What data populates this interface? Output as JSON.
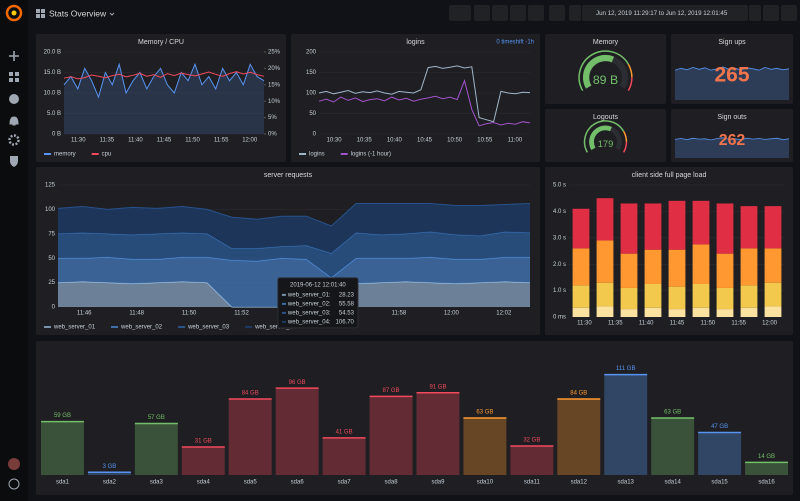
{
  "header": {
    "title": "Stats Overview",
    "time_range": "Jun 12, 2019 11:29:17 to Jun 12, 2019 12:01:45"
  },
  "chart_data": [
    {
      "type": "line",
      "title": "Memory / CPU",
      "ylim": [
        0,
        20
      ],
      "yticks": [
        {
          "value": 0,
          "label": "0 B"
        },
        {
          "value": 5,
          "label": "5.0 B"
        },
        {
          "value": 10,
          "label": "10.0 B"
        },
        {
          "value": 15,
          "label": "15.0 B"
        },
        {
          "value": 20,
          "label": "20.0 B"
        }
      ],
      "y2lim": [
        0,
        25
      ],
      "y2ticks": [
        {
          "value": 0,
          "label": "0%"
        },
        {
          "value": 5,
          "label": "5%"
        },
        {
          "value": 10,
          "label": "10%"
        },
        {
          "value": 15,
          "label": "15%"
        },
        {
          "value": 20,
          "label": "20%"
        },
        {
          "value": 25,
          "label": "25%"
        }
      ],
      "x_labels": [
        "11:30",
        "11:35",
        "11:40",
        "11:45",
        "11:50",
        "11:55",
        "12:00"
      ],
      "grid": true,
      "series": [
        {
          "name": "memory",
          "color": "#5794f2",
          "area": true,
          "values": [
            12,
            14,
            11,
            16,
            13,
            9,
            15,
            12,
            17,
            10,
            13,
            15,
            11,
            14,
            16,
            12,
            10,
            15,
            13,
            17,
            12,
            14,
            11,
            16,
            13,
            15,
            12,
            17,
            14,
            13
          ]
        },
        {
          "name": "cpu",
          "color": "#f2495c",
          "axis": "y2",
          "values": [
            17,
            17.5,
            16.8,
            17.2,
            18,
            17.6,
            17.1,
            17.8,
            18.2,
            17.4,
            17.9,
            18.5,
            17.6,
            18.1,
            17.3,
            18.4,
            17.8,
            18.6,
            18.1,
            17.7,
            18.3,
            18.9,
            18.2,
            17.6,
            18.4,
            19,
            18.3,
            18.8,
            18.1,
            17.6
          ]
        }
      ]
    },
    {
      "type": "line",
      "title": "logins",
      "annotation": "0 timeshift -1h",
      "ylim": [
        0,
        200
      ],
      "yticks": [
        0,
        50,
        100,
        150,
        200
      ],
      "x_labels": [
        "10:30",
        "10:35",
        "10:40",
        "10:45",
        "10:50",
        "10:55",
        "11:00"
      ],
      "grid": true,
      "series": [
        {
          "name": "logins",
          "color": "#9fb5c8",
          "values": [
            100,
            104,
            98,
            102,
            106,
            99,
            103,
            101,
            105,
            100,
            97,
            104,
            102,
            100,
            108,
            162,
            165,
            160,
            163,
            166,
            161,
            164,
            40,
            35,
            30,
            104,
            100,
            98,
            102,
            101
          ]
        },
        {
          "name": "logins (-1 hour)",
          "color": "#a352cc",
          "values": [
            80,
            85,
            78,
            90,
            82,
            88,
            79,
            84,
            86,
            81,
            90,
            83,
            87,
            80,
            85,
            88,
            92,
            86,
            90,
            84,
            130,
            60,
            20,
            25,
            28,
            22,
            26,
            24,
            30,
            27
          ]
        }
      ]
    },
    {
      "type": "gauge",
      "title": "Memory",
      "value": 89,
      "value_label": "89 B",
      "ylim": [
        0,
        150
      ],
      "color": "#73bf69"
    },
    {
      "type": "stat",
      "title": "Sign ups",
      "value": 265,
      "color": "#f2744b",
      "ylim": [
        200,
        300
      ],
      "sparkline_color": "#5794f2",
      "values": [
        262,
        266,
        263,
        268,
        264,
        267,
        262,
        265,
        269,
        264,
        266,
        263,
        267,
        265,
        262,
        268,
        264,
        266,
        263,
        265
      ]
    },
    {
      "type": "gauge",
      "title": "Logouts",
      "value": 179,
      "ylim": [
        0,
        300
      ],
      "color": "#73bf69"
    },
    {
      "type": "stat",
      "title": "Sign outs",
      "value": 262,
      "color": "#f2744b",
      "ylim": [
        200,
        300
      ],
      "sparkline_color": "#5794f2",
      "values": [
        260,
        263,
        259,
        264,
        261,
        262,
        258,
        263,
        265,
        260,
        262,
        259,
        264,
        261,
        263,
        260,
        262,
        264,
        259,
        262
      ]
    },
    {
      "type": "area",
      "title": "server requests",
      "stacked": true,
      "ylim": [
        0,
        125
      ],
      "yticks": [
        0,
        25,
        50,
        75,
        100,
        125
      ],
      "grid": true,
      "x_labels": [
        "11:46",
        "11:48",
        "11:50",
        "11:52",
        "11:54",
        "11:56",
        "11:58",
        "12:00",
        "12:02"
      ],
      "series": [
        {
          "name": "web_server_01",
          "color": "#7a93ab",
          "values": [
            25,
            26,
            25,
            24,
            25,
            26,
            25,
            0,
            0,
            0,
            0,
            0,
            24,
            25,
            26,
            25,
            24,
            25,
            26,
            25
          ]
        },
        {
          "name": "web_server_02",
          "color": "#3f6fa8",
          "values": [
            25,
            24,
            26,
            25,
            24,
            25,
            26,
            48,
            47,
            50,
            49,
            30,
            26,
            25,
            24,
            26,
            25,
            24,
            25,
            26
          ]
        },
        {
          "name": "web_server_03",
          "color": "#2a5589",
          "values": [
            25,
            26,
            24,
            25,
            26,
            25,
            24,
            12,
            13,
            12,
            14,
            25,
            26,
            24,
            25,
            26,
            25,
            24,
            26,
            25
          ]
        },
        {
          "name": "web_server_04",
          "color": "#1c3a63",
          "values": [
            26,
            27,
            25,
            28,
            26,
            27,
            25,
            32,
            30,
            31,
            30,
            28,
            30,
            32,
            31,
            29,
            30,
            31,
            28,
            30
          ]
        }
      ],
      "tooltip": {
        "time": "2019-06-12 12:01:40",
        "rows": [
          {
            "label": "web_server_01:",
            "value": "28.23"
          },
          {
            "label": "web_server_02:",
            "value": "55.58"
          },
          {
            "label": "web_server_03:",
            "value": "54.53"
          },
          {
            "label": "web_server_04:",
            "value": "106.70"
          }
        ]
      }
    },
    {
      "type": "bar",
      "title": "client side full page load",
      "stacked": true,
      "ylim": [
        0,
        5
      ],
      "yticks": [
        {
          "value": 0,
          "label": "0 ms"
        },
        {
          "value": 1,
          "label": "1.0 s"
        },
        {
          "value": 2,
          "label": "2.0 s"
        },
        {
          "value": 3,
          "label": "3.0 s"
        },
        {
          "value": 4,
          "label": "4.0 s"
        },
        {
          "value": 5,
          "label": "5.0 s"
        }
      ],
      "x_labels": [
        "11:30",
        "11:35",
        "11:40",
        "11:45",
        "11:50",
        "11:55",
        "12:00"
      ],
      "grid": true,
      "series": [
        {
          "color": "#fce2a0",
          "values": [
            0.35,
            0.4,
            0.3,
            0.35,
            0.3,
            0.35,
            0.3,
            0.35,
            0.4
          ]
        },
        {
          "color": "#f2c94c",
          "values": [
            0.85,
            0.9,
            0.8,
            0.9,
            0.85,
            0.9,
            0.8,
            0.85,
            0.9
          ]
        },
        {
          "color": "#ff9830",
          "values": [
            1.4,
            1.6,
            1.3,
            1.3,
            1.4,
            1.5,
            1.3,
            1.4,
            1.3
          ]
        },
        {
          "color": "#e02f44",
          "values": [
            1.5,
            1.6,
            1.9,
            1.75,
            1.85,
            1.65,
            1.9,
            1.6,
            1.6
          ]
        }
      ]
    },
    {
      "type": "bargauge",
      "ylim": [
        0,
        115
      ],
      "categories": [
        "sda1",
        "sda2",
        "sda3",
        "sda4",
        "sda5",
        "sda6",
        "sda7",
        "sda8",
        "sda9",
        "sda10",
        "sda11",
        "sda12",
        "sda13",
        "sda14",
        "sda15",
        "sda16"
      ],
      "values": [
        59,
        3,
        57,
        31,
        84,
        96,
        41,
        87,
        91,
        63,
        32,
        84,
        111,
        63,
        47,
        14
      ],
      "value_labels": [
        "59 GB",
        "3 GB",
        "57 GB",
        "31 GB",
        "84 GB",
        "96 GB",
        "41 GB",
        "87 GB",
        "91 GB",
        "63 GB",
        "32 GB",
        "84 GB",
        "111 GB",
        "63 GB",
        "47 GB",
        "14 GB"
      ],
      "colors": [
        "#73bf69",
        "#5794f2",
        "#73bf69",
        "#f2495c",
        "#f2495c",
        "#f2495c",
        "#f2495c",
        "#f2495c",
        "#f2495c",
        "#ff9830",
        "#f2495c",
        "#ff9830",
        "#5794f2",
        "#73bf69",
        "#5794f2",
        "#73bf69"
      ]
    }
  ]
}
